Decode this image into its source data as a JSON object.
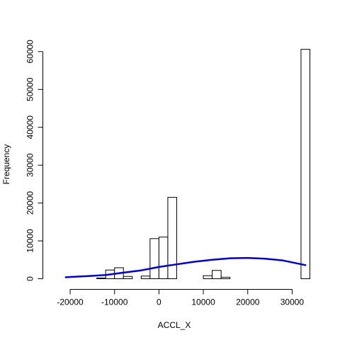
{
  "chart_data": {
    "type": "bar",
    "subtype": "histogram",
    "xlabel": "ACCL_X",
    "ylabel": "Frequency",
    "xlim": [
      -22000,
      34000
    ],
    "ylim": [
      0,
      61000
    ],
    "x_ticks": [
      -20000,
      -10000,
      0,
      10000,
      20000,
      30000
    ],
    "x_tick_labels": [
      "-20000",
      "-10000",
      "0",
      "10000",
      "20000",
      "30000"
    ],
    "y_ticks": [
      0,
      10000,
      20000,
      30000,
      40000,
      50000,
      60000
    ],
    "y_tick_labels": [
      "0",
      "10000",
      "20000",
      "30000",
      "40000",
      "50000",
      "60000"
    ],
    "bins": [
      {
        "x0": -14000,
        "x1": -12000,
        "count": 200
      },
      {
        "x0": -12000,
        "x1": -10000,
        "count": 2300
      },
      {
        "x0": -10000,
        "x1": -8000,
        "count": 2900
      },
      {
        "x0": -8000,
        "x1": -6000,
        "count": 600
      },
      {
        "x0": -6000,
        "x1": -4000,
        "count": 0
      },
      {
        "x0": -4000,
        "x1": -2000,
        "count": 700
      },
      {
        "x0": -2000,
        "x1": 0,
        "count": 10600
      },
      {
        "x0": 0,
        "x1": 2000,
        "count": 11000
      },
      {
        "x0": 2000,
        "x1": 4000,
        "count": 21500
      },
      {
        "x0": 10000,
        "x1": 12000,
        "count": 800
      },
      {
        "x0": 12000,
        "x1": 14000,
        "count": 2200
      },
      {
        "x0": 14000,
        "x1": 16000,
        "count": 400
      },
      {
        "x0": 32000,
        "x1": 34000,
        "count": 60600
      }
    ],
    "curve": {
      "color": "#0000cc",
      "points": [
        {
          "x": -21000,
          "y": 400
        },
        {
          "x": -16000,
          "y": 700
        },
        {
          "x": -12000,
          "y": 1000
        },
        {
          "x": -8000,
          "y": 1600
        },
        {
          "x": -4000,
          "y": 2200
        },
        {
          "x": 0,
          "y": 3100
        },
        {
          "x": 4000,
          "y": 3800
        },
        {
          "x": 8000,
          "y": 4500
        },
        {
          "x": 12000,
          "y": 5000
        },
        {
          "x": 16000,
          "y": 5400
        },
        {
          "x": 20000,
          "y": 5500
        },
        {
          "x": 24000,
          "y": 5300
        },
        {
          "x": 28000,
          "y": 4800
        },
        {
          "x": 33000,
          "y": 3600
        }
      ]
    },
    "bar_fill": "#ffffff",
    "bar_stroke": "#000000"
  }
}
